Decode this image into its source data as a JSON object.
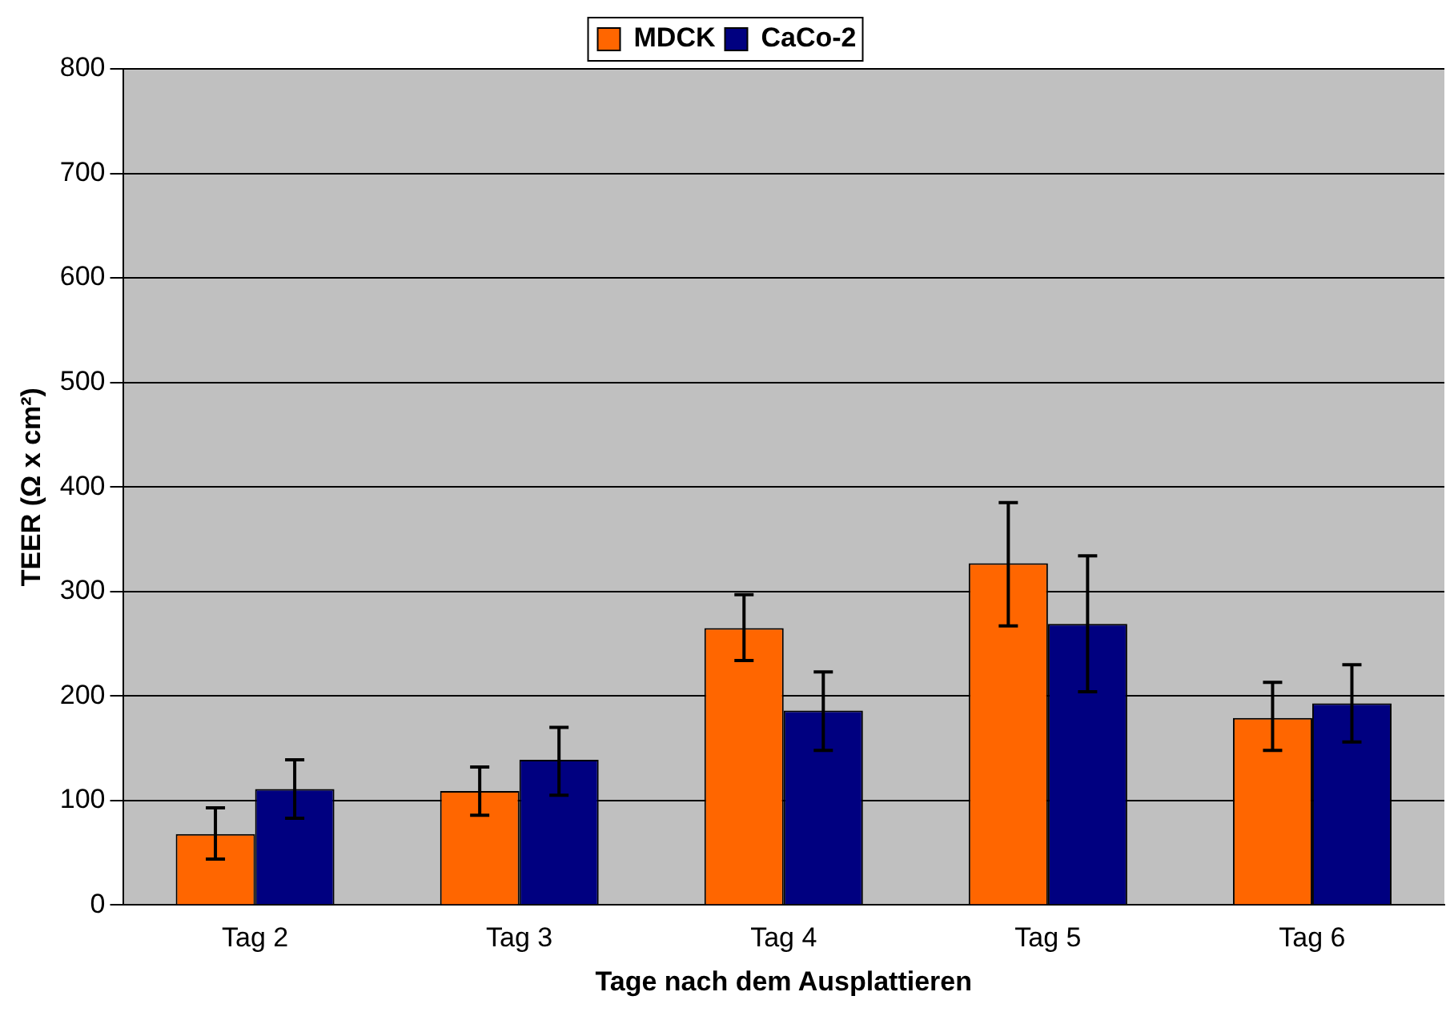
{
  "chart_data": {
    "type": "bar",
    "xlabel": "Tage nach dem Ausplattieren",
    "ylabel": "TEER (Ω x cm²)",
    "categories": [
      "Tag 2",
      "Tag 3",
      "Tag 4",
      "Tag 5",
      "Tag 6"
    ],
    "series": [
      {
        "name": "MDCK",
        "color": "#ff6600",
        "values": [
          68,
          109,
          265,
          327,
          179
        ],
        "errors": [
          [
            44,
            93
          ],
          [
            86,
            132
          ],
          [
            234,
            297
          ],
          [
            267,
            385
          ],
          [
            148,
            213
          ]
        ]
      },
      {
        "name": "CaCo-2",
        "color": "#000080",
        "values": [
          111,
          139,
          186,
          269,
          193
        ],
        "errors": [
          [
            83,
            139
          ],
          [
            105,
            170
          ],
          [
            148,
            223
          ],
          [
            204,
            334
          ],
          [
            156,
            230
          ]
        ]
      }
    ],
    "ylim": [
      0,
      800
    ],
    "yticks": [
      0,
      100,
      200,
      300,
      400,
      500,
      600,
      700,
      800
    ],
    "grid": "y",
    "legend": "top"
  }
}
